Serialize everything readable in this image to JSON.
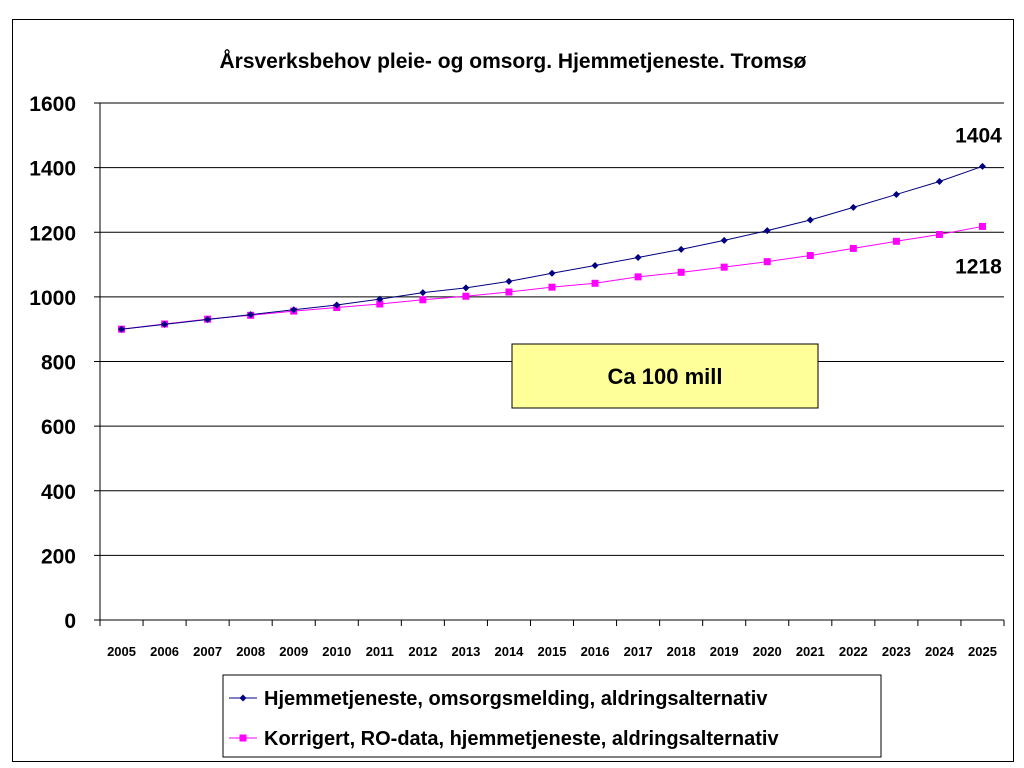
{
  "chart_data": {
    "type": "line",
    "title": "Årsverksbehov pleie- og omsorg. Hjemmetjeneste. Tromsø",
    "categories": [
      "2005",
      "2006",
      "2007",
      "2008",
      "2009",
      "2010",
      "2011",
      "2012",
      "2013",
      "2014",
      "2015",
      "2016",
      "2017",
      "2018",
      "2019",
      "2020",
      "2021",
      "2022",
      "2023",
      "2024",
      "2025"
    ],
    "series": [
      {
        "name": "Hjemmetjeneste, omsorgsmelding, aldringsalternativ",
        "color": "#000080",
        "marker": "diamond",
        "values": [
          900,
          915,
          930,
          945,
          960,
          975,
          993,
          1013,
          1028,
          1048,
          1073,
          1097,
          1122,
          1147,
          1175,
          1205,
          1238,
          1277,
          1317,
          1357,
          1404
        ]
      },
      {
        "name": "Korrigert, RO-data, hjemmetjeneste, aldringsalternativ",
        "color": "#ff00ff",
        "marker": "square",
        "values": [
          900,
          916,
          931,
          943,
          956,
          967,
          978,
          991,
          1002,
          1015,
          1030,
          1042,
          1062,
          1076,
          1092,
          1109,
          1128,
          1150,
          1172,
          1193,
          1218
        ]
      }
    ],
    "ylim": [
      0,
      1600
    ],
    "yticks": [
      0,
      200,
      400,
      600,
      800,
      1000,
      1200,
      1400,
      1600
    ],
    "grid": true,
    "legend_position": "bottom",
    "annotations": [
      {
        "text": "1404",
        "series": 0,
        "index": 20
      },
      {
        "text": "1218",
        "series": 1,
        "index": 20
      }
    ],
    "callout": {
      "text": "Ca 100 mill",
      "fill": "#ffff99"
    }
  }
}
